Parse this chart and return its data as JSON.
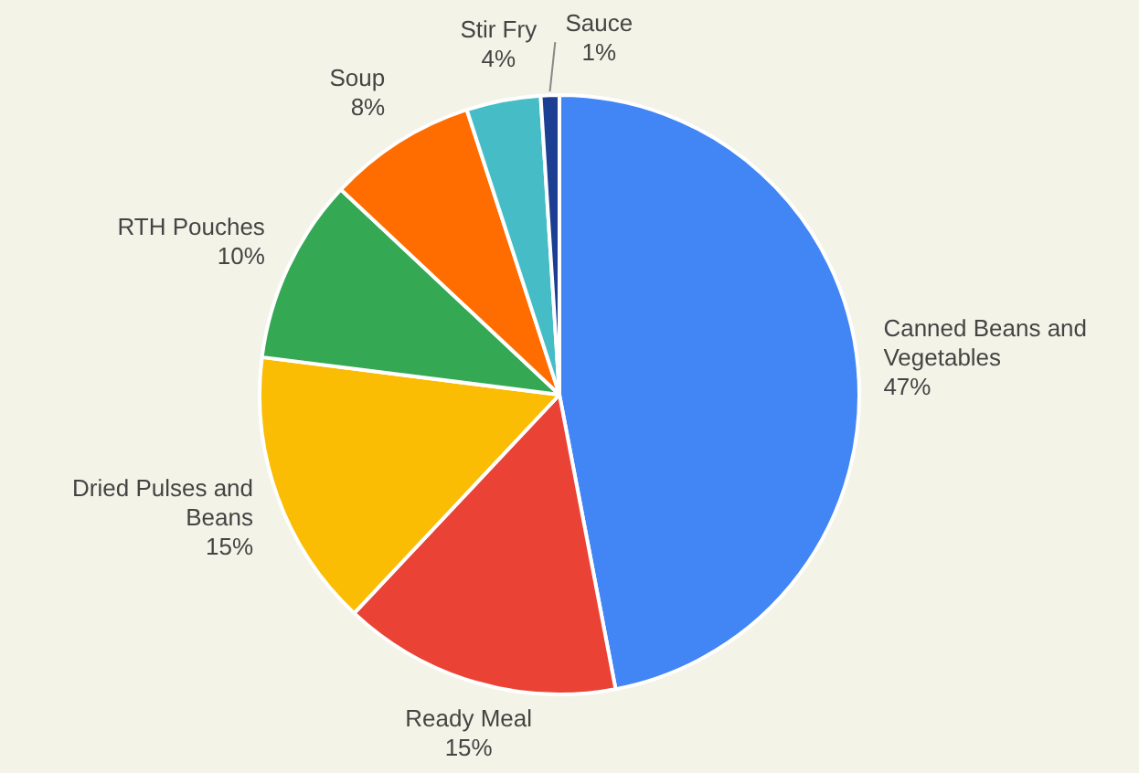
{
  "chart_data": {
    "type": "pie",
    "categories": [
      "Canned Beans and Vegetables",
      "Ready Meal",
      "Dried Pulses and Beans",
      "RTH Pouches",
      "Soup",
      "Stir Fry",
      "Sauce"
    ],
    "values": [
      47,
      15,
      15,
      10,
      8,
      4,
      1
    ],
    "value_labels": [
      "47%",
      "15%",
      "15%",
      "10%",
      "8%",
      "4%",
      "1%"
    ],
    "colors": [
      "#4285f4",
      "#ea4335",
      "#fbbc04",
      "#34a853",
      "#ff6d01",
      "#46bdc6",
      "#1c3f94"
    ]
  }
}
